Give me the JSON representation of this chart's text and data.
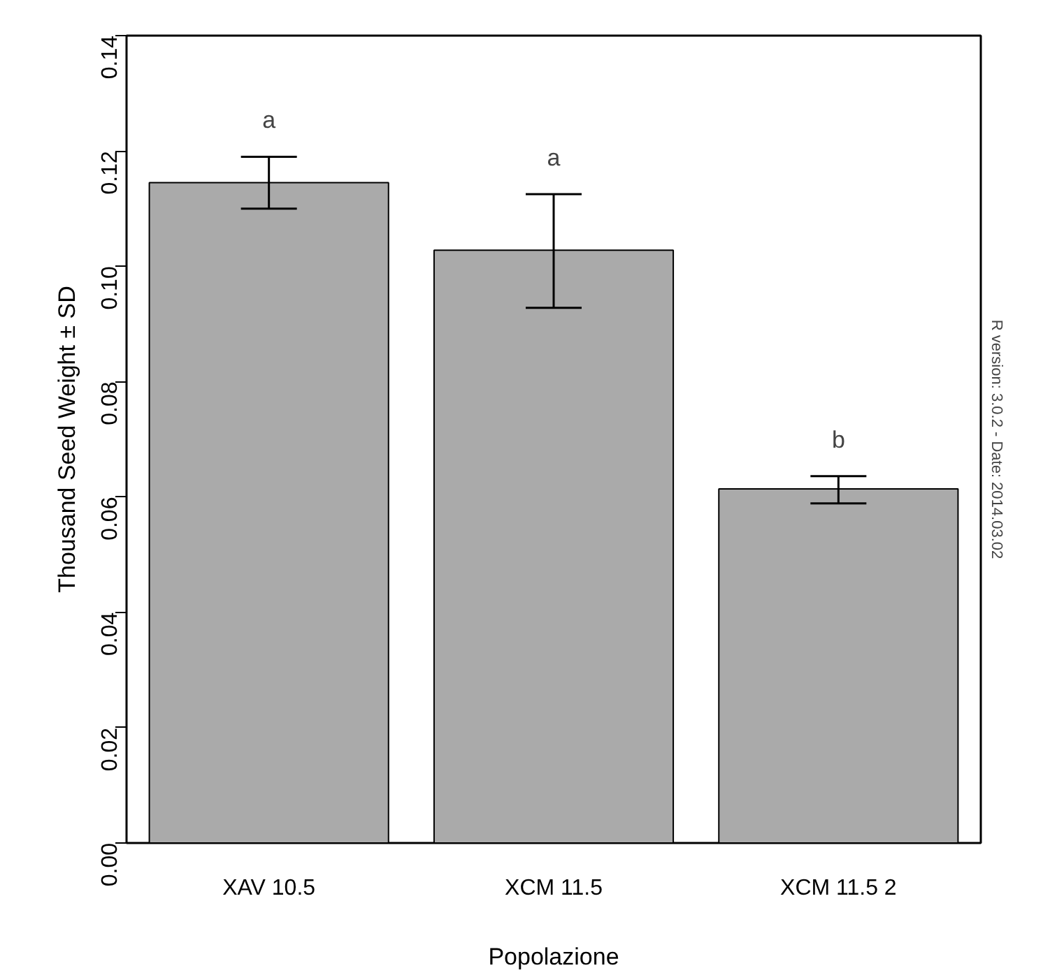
{
  "chart_data": {
    "type": "bar",
    "xlabel": "Popolazione",
    "ylabel": "Thousand Seed Weight ± SD",
    "categories": [
      "XAV 10.5",
      "XCM 11.5",
      "XCM 11.5 2"
    ],
    "values": [
      0.1145,
      0.1028,
      0.0614
    ],
    "color": "#aaaaaa",
    "errors": [
      [
        0.11,
        0.119
      ],
      [
        0.0928,
        0.1125
      ],
      [
        0.0589,
        0.0636
      ]
    ],
    "ylim": [
      0,
      0.14
    ],
    "yticks": [
      {
        "value": 0,
        "label": "0.00"
      },
      0.02,
      0.04,
      0.06,
      0.08,
      {
        "value": 0.1,
        "label": "0.10"
      },
      0.12,
      0.14
    ],
    "grid": false,
    "annotations": [
      "a",
      "a",
      "b",
      "R version: 3.0.2 - Date: 2014.03.02"
    ]
  }
}
